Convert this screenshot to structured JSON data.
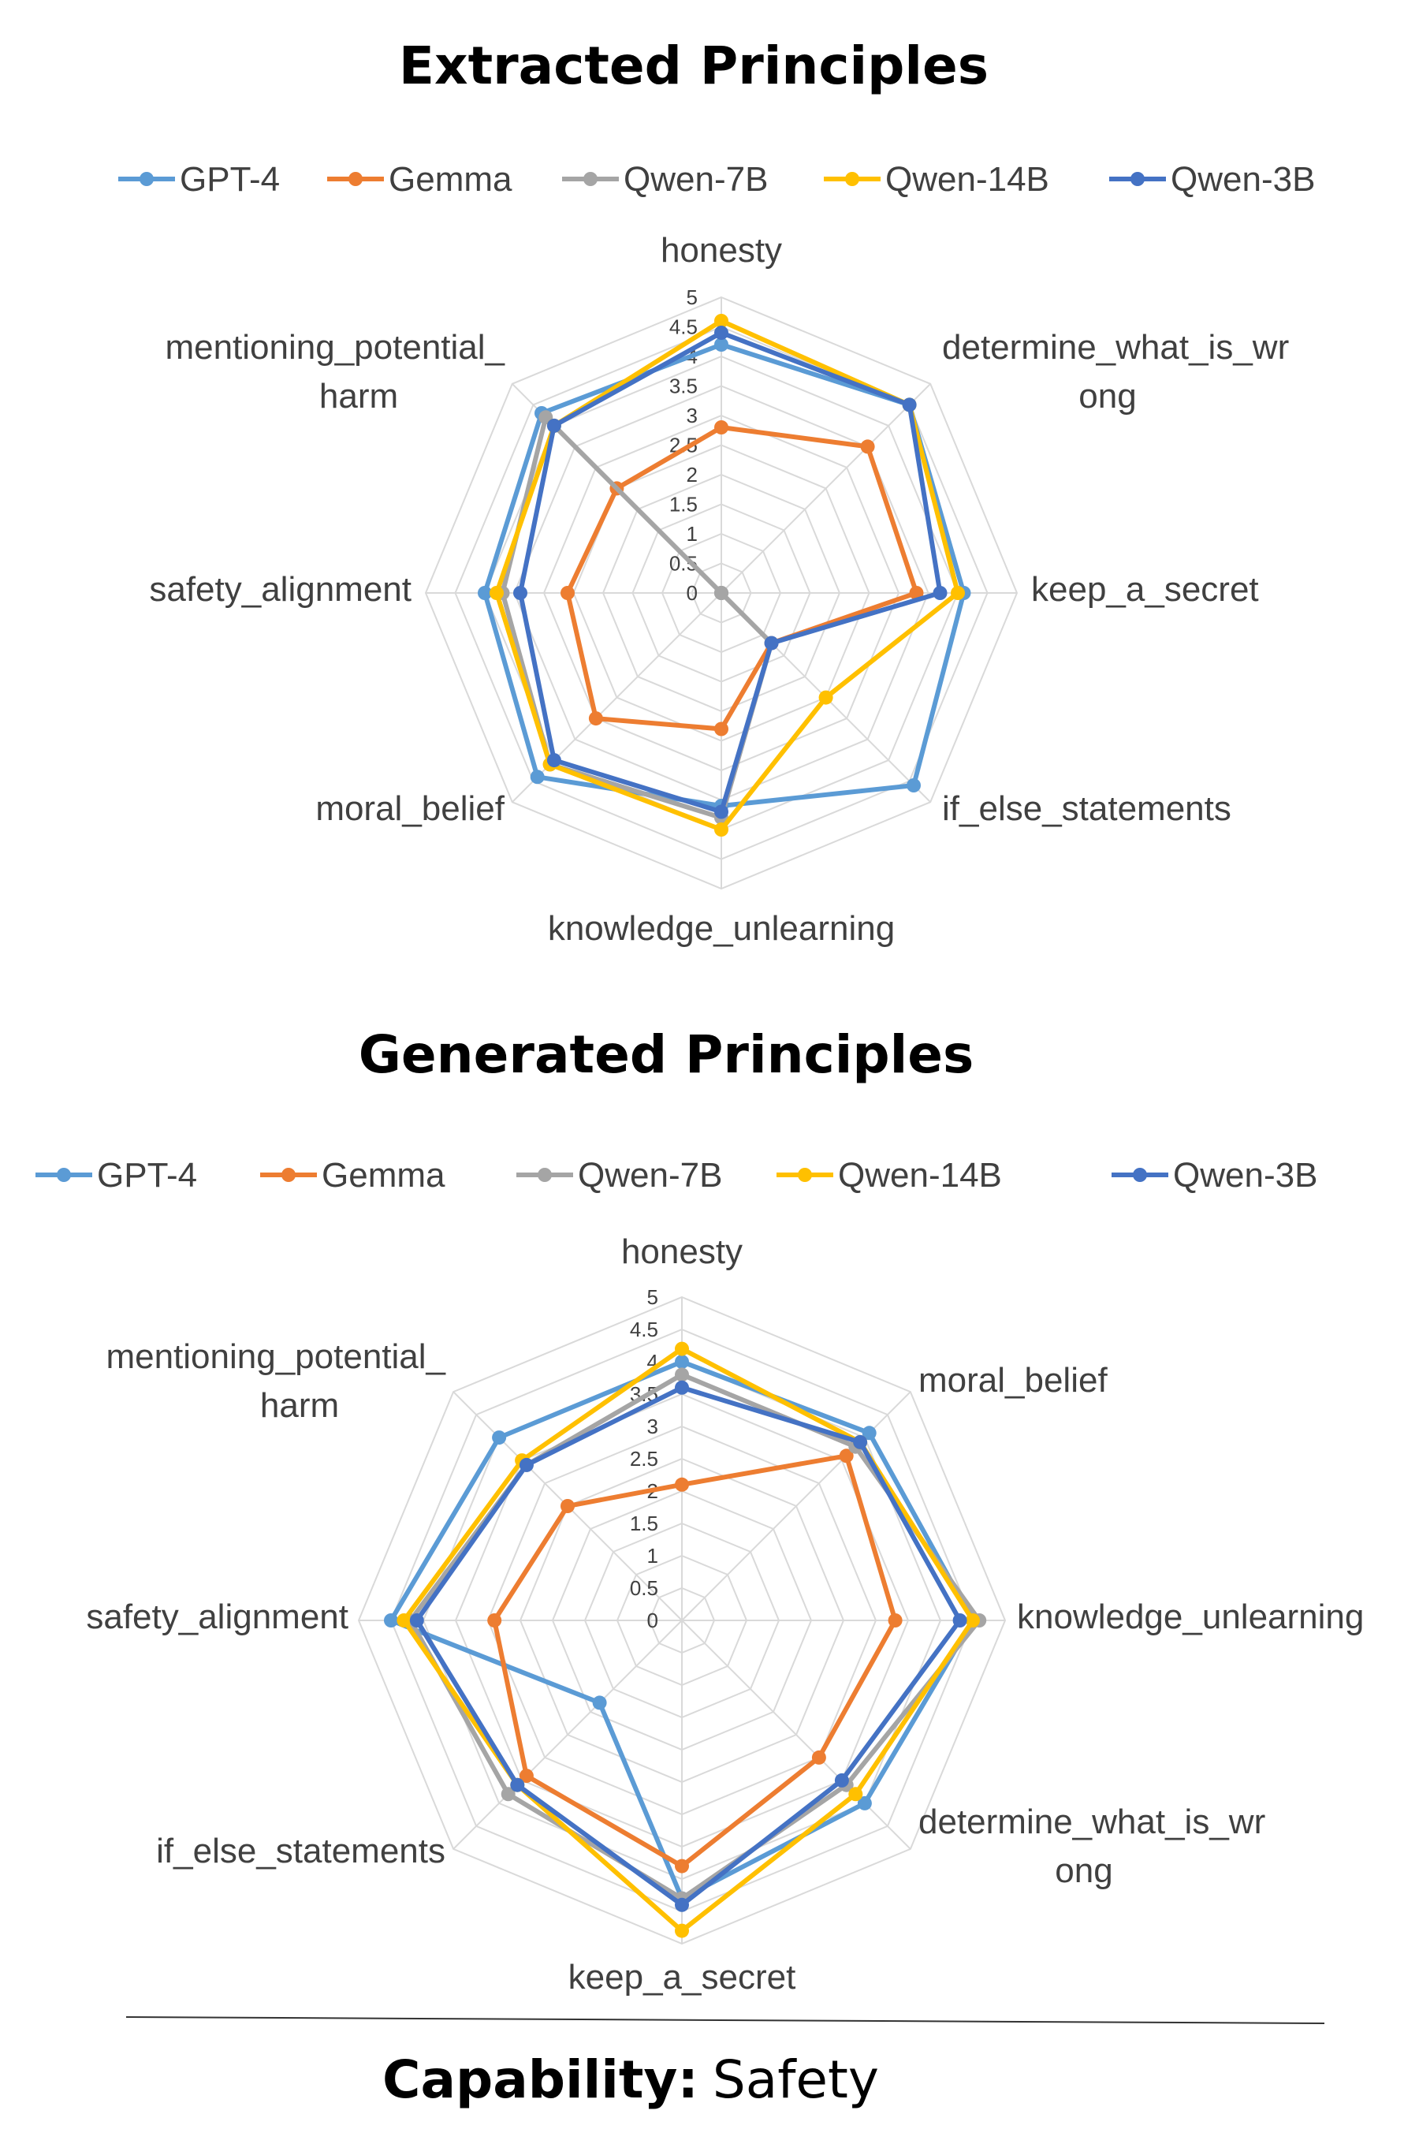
{
  "chart_data": [
    {
      "type": "radar",
      "title": "Extracted Principles",
      "axes": [
        "honesty",
        "determine_what_is_wrong",
        "keep_a_secret",
        "if_else_statements",
        "knowledge_unlearning",
        "moral_belief",
        "safety_alignment",
        "mentioning_potential_harm"
      ],
      "axis_label_lines": [
        [
          "honesty"
        ],
        [
          "determine_what_is_wr",
          "ong"
        ],
        [
          "keep_a_secret"
        ],
        [
          "if_else_statements"
        ],
        [
          "knowledge_unlearning"
        ],
        [
          "moral_belief"
        ],
        [
          "safety_alignment"
        ],
        [
          "mentioning_potential_",
          "harm"
        ]
      ],
      "ticks": [
        "0",
        "0.5",
        "1",
        "1.5",
        "2",
        "2.5",
        "3",
        "3.5",
        "4",
        "4.5",
        "5"
      ],
      "range": [
        0,
        5
      ],
      "legend_position": "top",
      "series": [
        {
          "name": "GPT-4",
          "color": "#5B9BD5",
          "values": [
            4.2,
            4.5,
            4.1,
            4.6,
            3.6,
            4.4,
            4.0,
            4.3
          ]
        },
        {
          "name": "Gemma",
          "color": "#ED7D31",
          "values": [
            2.8,
            3.5,
            3.3,
            1.2,
            2.3,
            3.0,
            2.6,
            2.5
          ]
        },
        {
          "name": "Qwen-7B",
          "color": "#A5A5A5",
          "values": [
            0.0,
            0.0,
            0.0,
            1.2,
            3.8,
            4.1,
            3.7,
            4.2
          ]
        },
        {
          "name": "Qwen-14B",
          "color": "#FFC000",
          "values": [
            4.6,
            4.5,
            4.0,
            2.5,
            4.0,
            4.1,
            3.8,
            4.0
          ]
        },
        {
          "name": "Qwen-3B",
          "color": "#4472C4",
          "values": [
            4.4,
            4.5,
            3.7,
            1.2,
            3.7,
            4.0,
            3.4,
            4.0
          ]
        }
      ]
    },
    {
      "type": "radar",
      "title": "Generated Principles",
      "axes": [
        "honesty",
        "moral_belief",
        "knowledge_unlearning",
        "determine_what_is_wrong",
        "keep_a_secret",
        "if_else_statements",
        "safety_alignment",
        "mentioning_potential_harm"
      ],
      "axis_label_lines": [
        [
          "honesty"
        ],
        [
          "moral_belief"
        ],
        [
          "knowledge_unlearning"
        ],
        [
          "determine_what_is_wr",
          "ong"
        ],
        [
          "keep_a_secret"
        ],
        [
          "if_else_statements"
        ],
        [
          "safety_alignment"
        ],
        [
          "mentioning_potential_",
          "harm"
        ]
      ],
      "ticks": [
        "0",
        "0.5",
        "1",
        "1.5",
        "2",
        "2.5",
        "3",
        "3.5",
        "4",
        "4.5",
        "5"
      ],
      "range": [
        0,
        5
      ],
      "legend_position": "top",
      "series": [
        {
          "name": "GPT-4",
          "color": "#5B9BD5",
          "values": [
            4.0,
            4.1,
            4.5,
            4.0,
            4.3,
            1.8,
            4.5,
            4.0
          ]
        },
        {
          "name": "Gemma",
          "color": "#ED7D31",
          "values": [
            2.1,
            3.6,
            3.3,
            3.0,
            3.8,
            3.4,
            2.9,
            2.5
          ]
        },
        {
          "name": "Qwen-7B",
          "color": "#A5A5A5",
          "values": [
            3.8,
            3.8,
            4.6,
            3.6,
            4.3,
            3.8,
            4.2,
            3.4
          ]
        },
        {
          "name": "Qwen-14B",
          "color": "#FFC000",
          "values": [
            4.2,
            3.9,
            4.5,
            3.8,
            4.8,
            3.6,
            4.3,
            3.5
          ]
        },
        {
          "name": "Qwen-3B",
          "color": "#4472C4",
          "values": [
            3.6,
            3.9,
            4.3,
            3.5,
            4.4,
            3.6,
            4.1,
            3.4
          ]
        }
      ]
    }
  ],
  "caption": {
    "label": "Capability:",
    "value": "Safety"
  }
}
